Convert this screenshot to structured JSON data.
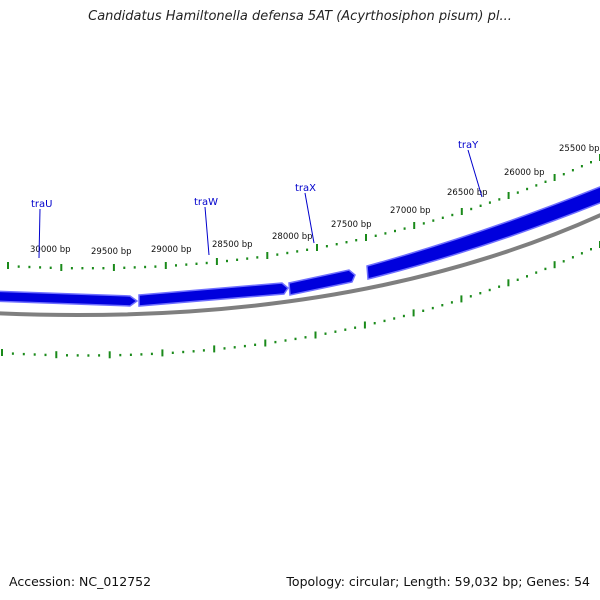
{
  "header": {
    "title": "Candidatus Hamiltonella defensa 5AT (Acyrthosiphon pisum) pl..."
  },
  "footer": {
    "accession": "Accession: NC_012752",
    "summary": "Topology: circular; Length: 59,032 bp; Genes: 54"
  },
  "colors": {
    "gene_fill": "#0000dd",
    "gene_light": "#6f6fff",
    "backbone": "#7f7f7f",
    "tick": "#1a8a1a",
    "gene_label": "#0000cc"
  },
  "tick_labels": [
    "30000 bp",
    "29500 bp",
    "29000 bp",
    "28500 bp",
    "28000 bp",
    "27500 bp",
    "27000 bp",
    "26500 bp",
    "26000 bp",
    "25500 bp"
  ],
  "gene_labels": [
    "traU",
    "traW",
    "traX",
    "traY"
  ]
}
